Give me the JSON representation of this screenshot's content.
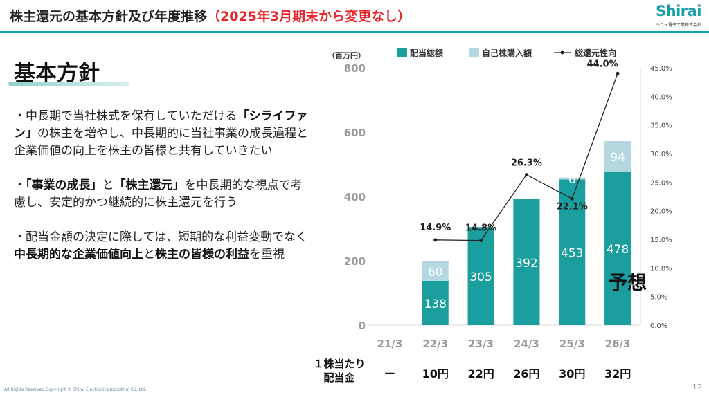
{
  "header": {
    "title_main": "株主還元の基本方針及び年度推移",
    "title_note": "（2025年3月期末から変更なし）",
    "logo_word": "Shirai",
    "logo_sub": "シライ電子工業株式会社"
  },
  "policy": {
    "heading": "基本方針",
    "b1_pre": "・中長期で当社株式を保有していただける",
    "b1_bold": "「シライファン」",
    "b1_post": "の株主を増やし、中長期的に当社事業の成長過程と企業価値の向上を株主の皆様と共有していきたい",
    "b2_pre": "・",
    "b2_bold1": "「事業の成長」",
    "b2_mid": "と",
    "b2_bold2": "「株主還元」",
    "b2_post": "を中長期的な視点で考慮し、安定的かつ継続的に株主還元を行う",
    "b3_pre": "・配当金額の決定に際しては、短期的な利益変動でなく",
    "b3_bold1": "中長期的な企業価値向上",
    "b3_mid": "と",
    "b3_bold2": "株主の皆様の利益",
    "b3_post": "を重視"
  },
  "chart_data": {
    "type": "bar",
    "unit_label": "（百万円）",
    "categories": [
      "21/3",
      "22/3",
      "23/3",
      "24/3",
      "25/3",
      "26/3"
    ],
    "series": [
      {
        "name": "配当総額",
        "values": [
          null,
          138,
          305,
          392,
          453,
          478
        ],
        "color": "#1a9e9e"
      },
      {
        "name": "自己株購入額",
        "values": [
          null,
          60,
          null,
          null,
          6,
          94
        ],
        "color": "#b5d8e0"
      }
    ],
    "line_series": {
      "name": "総還元性向",
      "values": [
        null,
        14.9,
        14.8,
        26.3,
        22.1,
        44.0
      ],
      "labels": [
        "",
        "14.9%",
        "14.8%",
        "26.3%",
        "22.1%",
        "44.0%"
      ]
    },
    "left_axis": {
      "ylim": [
        0,
        800
      ],
      "ticks": [
        "0",
        "200",
        "400",
        "600",
        "800"
      ]
    },
    "right_axis": {
      "ylim": [
        0,
        45
      ],
      "ticks": [
        "0.0%",
        "5.0%",
        "10.0%",
        "15.0%",
        "20.0%",
        "25.0%",
        "30.0%",
        "35.0%",
        "40.0%",
        "45.0%"
      ]
    },
    "forecast_label": "予想",
    "legend_position": "top"
  },
  "dps": {
    "row_label_line1": "１株当たり",
    "row_label_line2": "配当金",
    "values": [
      "ー",
      "10円",
      "22円",
      "26円",
      "30円",
      "32円"
    ]
  },
  "footer": {
    "copyright": "All Rights Reserved.Copyright © Shirai Electronics Industrial Co.,Ltd.",
    "page": "12"
  },
  "colors": {
    "accent_teal": "#1a9e9e",
    "light_blue": "#b5d8e0",
    "title_red": "#e8242b"
  }
}
